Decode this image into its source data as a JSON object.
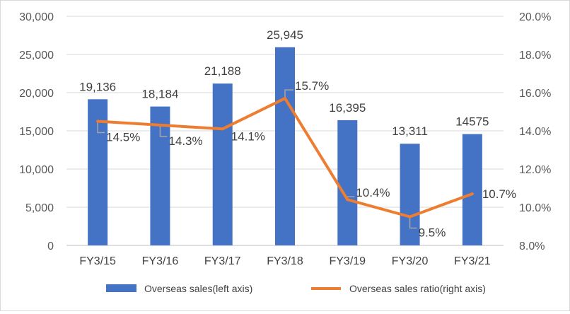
{
  "chart_data": {
    "type": "bar",
    "categories": [
      "FY3/15",
      "FY3/16",
      "FY3/17",
      "FY3/18",
      "FY3/19",
      "FY3/20",
      "FY3/21"
    ],
    "series": [
      {
        "name": "Overseas sales(left axis)",
        "type": "bar",
        "axis": "left",
        "color": "#4472c4",
        "values": [
          19136,
          18184,
          21188,
          25945,
          16395,
          13311,
          14575
        ],
        "labels": [
          "19,136",
          "18,184",
          "21,188",
          "25,945",
          "16,395",
          "13,311",
          "14575"
        ]
      },
      {
        "name": "Overseas sales ratio(right axis)",
        "type": "line",
        "axis": "right",
        "color": "#ed7d31",
        "values": [
          14.5,
          14.3,
          14.1,
          15.7,
          10.4,
          9.5,
          10.7
        ],
        "labels": [
          "14.5%",
          "14.3%",
          "14.1%",
          "15.7%",
          "10.4%",
          "9.5%",
          "10.7%"
        ]
      }
    ],
    "left_axis": {
      "ylim": [
        0,
        30000
      ],
      "ticks": [
        0,
        5000,
        10000,
        15000,
        20000,
        25000,
        30000
      ],
      "tick_labels": [
        "0",
        "5,000",
        "10,000",
        "15,000",
        "20,000",
        "25,000",
        "30,000"
      ]
    },
    "right_axis": {
      "ylim": [
        8,
        20
      ],
      "ticks": [
        8,
        10,
        12,
        14,
        16,
        18,
        20
      ],
      "tick_labels": [
        "8.0%",
        "10.0%",
        "12.0%",
        "14.0%",
        "16.0%",
        "18.0%",
        "20.0%"
      ]
    },
    "grid": true,
    "legend": "bottom"
  }
}
